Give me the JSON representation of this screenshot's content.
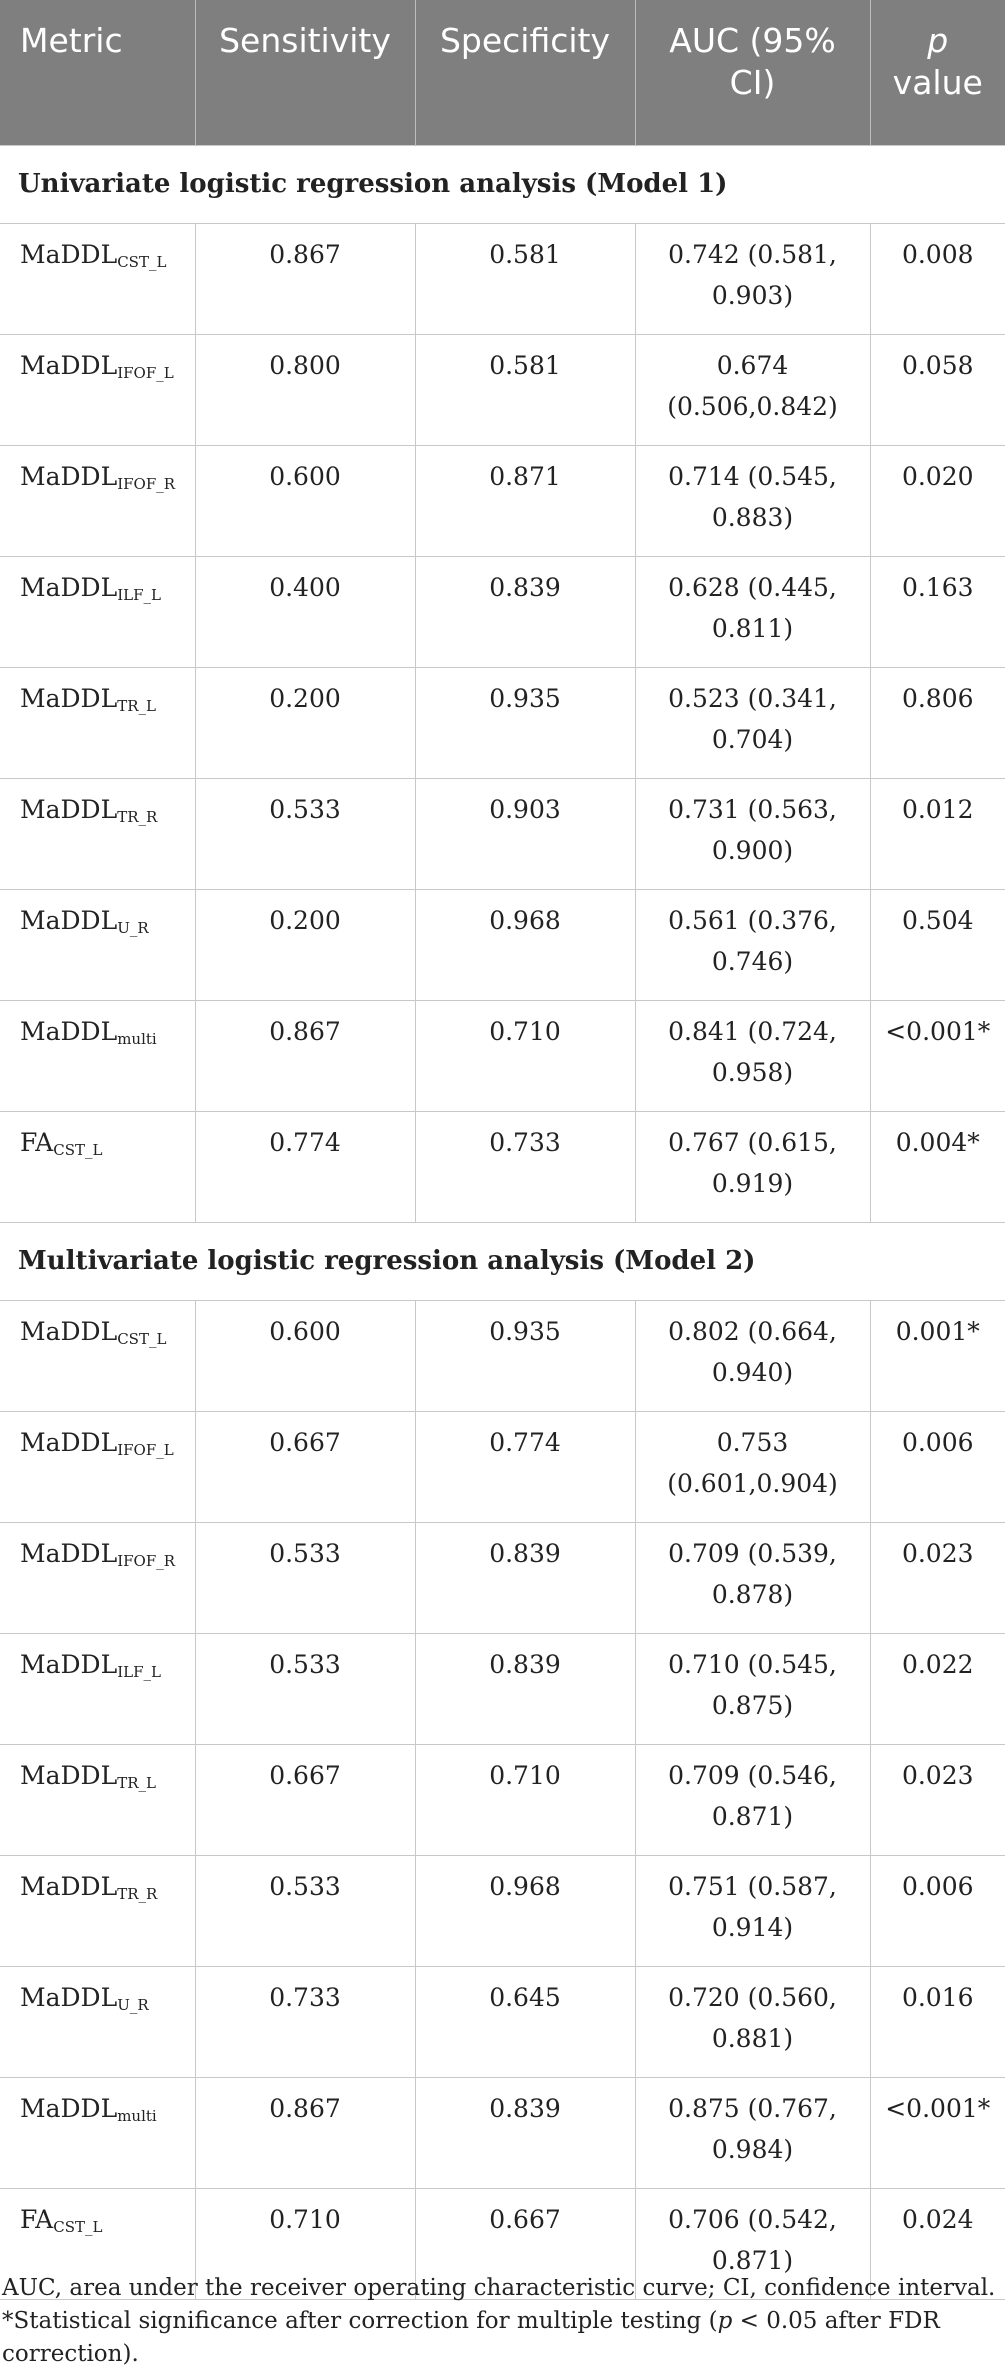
{
  "table": {
    "headers": {
      "metric": "Metric",
      "sensitivity": "Sensitivity",
      "specificity": "Specificity",
      "auc_line1": "AUC (95%",
      "auc_line2": "CI)",
      "p_line1": "p",
      "p_line2": "value"
    },
    "sections": [
      {
        "title": "Univariate logistic regression analysis (Model 1)",
        "rows": [
          {
            "metric": "MaDDL",
            "sub": "CST_L",
            "sensitivity": "0.867",
            "specificity": "0.581",
            "auc_line1": "0.742 (0.581,",
            "auc_line2": "0.903)",
            "p": "0.008"
          },
          {
            "metric": "MaDDL",
            "sub": "IFOF_L",
            "sensitivity": "0.800",
            "specificity": "0.581",
            "auc_line1": "0.674",
            "auc_line2": "(0.506,0.842)",
            "p": "0.058"
          },
          {
            "metric": "MaDDL",
            "sub": "IFOF_R",
            "sensitivity": "0.600",
            "specificity": "0.871",
            "auc_line1": "0.714 (0.545,",
            "auc_line2": "0.883)",
            "p": "0.020"
          },
          {
            "metric": "MaDDL",
            "sub": "ILF_L",
            "sensitivity": "0.400",
            "specificity": "0.839",
            "auc_line1": "0.628 (0.445,",
            "auc_line2": "0.811)",
            "p": "0.163"
          },
          {
            "metric": "MaDDL",
            "sub": "TR_L",
            "sensitivity": "0.200",
            "specificity": "0.935",
            "auc_line1": "0.523 (0.341,",
            "auc_line2": "0.704)",
            "p": "0.806"
          },
          {
            "metric": "MaDDL",
            "sub": "TR_R",
            "sensitivity": "0.533",
            "specificity": "0.903",
            "auc_line1": "0.731 (0.563,",
            "auc_line2": "0.900)",
            "p": "0.012"
          },
          {
            "metric": "MaDDL",
            "sub": "U_R",
            "sensitivity": "0.200",
            "specificity": "0.968",
            "auc_line1": "0.561 (0.376,",
            "auc_line2": "0.746)",
            "p": "0.504"
          },
          {
            "metric": "MaDDL",
            "sub": "multi",
            "sensitivity": "0.867",
            "specificity": "0.710",
            "auc_line1": "0.841 (0.724,",
            "auc_line2": "0.958)",
            "p": "<0.001*"
          },
          {
            "metric": "FA",
            "sub": "CST_L",
            "sensitivity": "0.774",
            "specificity": "0.733",
            "auc_line1": "0.767 (0.615,",
            "auc_line2": "0.919)",
            "p": "0.004*"
          }
        ]
      },
      {
        "title": "Multivariate logistic regression analysis (Model 2)",
        "rows": [
          {
            "metric": "MaDDL",
            "sub": "CST_L",
            "sensitivity": "0.600",
            "specificity": "0.935",
            "auc_line1": "0.802 (0.664,",
            "auc_line2": "0.940)",
            "p": "0.001*"
          },
          {
            "metric": "MaDDL",
            "sub": "IFOF_L",
            "sensitivity": "0.667",
            "specificity": "0.774",
            "auc_line1": "0.753",
            "auc_line2": "(0.601,0.904)",
            "p": "0.006"
          },
          {
            "metric": "MaDDL",
            "sub": "IFOF_R",
            "sensitivity": "0.533",
            "specificity": "0.839",
            "auc_line1": "0.709 (0.539,",
            "auc_line2": "0.878)",
            "p": "0.023"
          },
          {
            "metric": "MaDDL",
            "sub": "ILF_L",
            "sensitivity": "0.533",
            "specificity": "0.839",
            "auc_line1": "0.710 (0.545,",
            "auc_line2": "0.875)",
            "p": "0.022"
          },
          {
            "metric": "MaDDL",
            "sub": "TR_L",
            "sensitivity": "0.667",
            "specificity": "0.710",
            "auc_line1": "0.709 (0.546,",
            "auc_line2": "0.871)",
            "p": "0.023"
          },
          {
            "metric": "MaDDL",
            "sub": "TR_R",
            "sensitivity": "0.533",
            "specificity": "0.968",
            "auc_line1": "0.751 (0.587,",
            "auc_line2": "0.914)",
            "p": "0.006"
          },
          {
            "metric": "MaDDL",
            "sub": "U_R",
            "sensitivity": "0.733",
            "specificity": "0.645",
            "auc_line1": "0.720 (0.560,",
            "auc_line2": "0.881)",
            "p": "0.016"
          },
          {
            "metric": "MaDDL",
            "sub": "multi",
            "sensitivity": "0.867",
            "specificity": "0.839",
            "auc_line1": "0.875 (0.767,",
            "auc_line2": "0.984)",
            "p": "<0.001*"
          },
          {
            "metric": "FA",
            "sub": "CST_L",
            "sensitivity": "0.710",
            "specificity": "0.667",
            "auc_line1": "0.706 (0.542,",
            "auc_line2": "0.871)",
            "p": "0.024"
          }
        ]
      }
    ]
  },
  "footnotes": {
    "abbrev": "AUC, area under the receiver operating characteristic curve; CI, confidence interval.",
    "sig_prefix": "*Statistical significance after correction for multiple testing (",
    "sig_p": "p",
    "sig_suffix": " < 0.05 after FDR correction)."
  },
  "colors": {
    "header_bg": "#7f7f7f",
    "header_text": "#ffffff",
    "grid_line": "#c8c8c8"
  }
}
